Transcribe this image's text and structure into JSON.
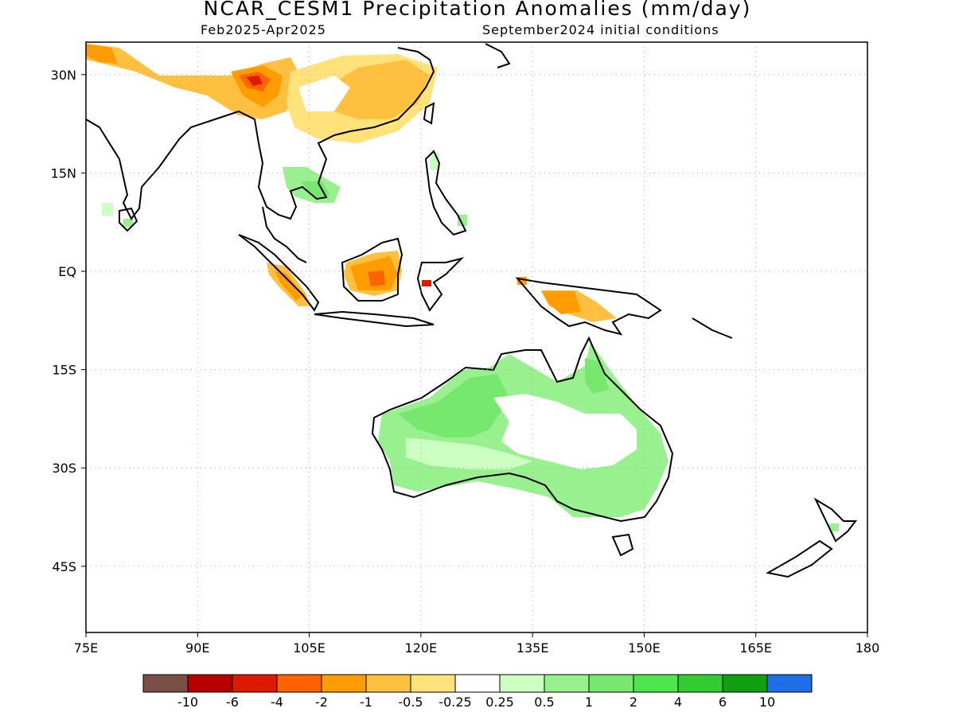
{
  "title": "NCAR_CESM1 Precipitation Anomalies (mm/day)",
  "valid_period": "Feb2025-Apr2025",
  "initial_conditions": "September2024 initial conditions",
  "lat_labels": [
    {
      "label": "30N",
      "lat": 30
    },
    {
      "label": "15N",
      "lat": 15
    },
    {
      "label": "EQ",
      "lat": 0
    },
    {
      "label": "15S",
      "lat": -15
    },
    {
      "label": "30S",
      "lat": -30
    },
    {
      "label": "45S",
      "lat": -45
    }
  ],
  "lon_labels": [
    {
      "label": "75E",
      "lon": 75
    },
    {
      "label": "90E",
      "lon": 90
    },
    {
      "label": "105E",
      "lon": 105
    },
    {
      "label": "120E",
      "lon": 120
    },
    {
      "label": "135E",
      "lon": 135
    },
    {
      "label": "150E",
      "lon": 150
    },
    {
      "label": "165E",
      "lon": 165
    },
    {
      "label": "180",
      "lon": 180
    }
  ],
  "colorbar": {
    "colors": [
      "#7a4f45",
      "#b80000",
      "#dd1a00",
      "#ff6200",
      "#ff9d00",
      "#ffc040",
      "#ffe27a",
      "#ffffff",
      "#ccffc2",
      "#99f08f",
      "#77e86e",
      "#4de64d",
      "#33cc33",
      "#119e11",
      "#1e6ee6"
    ],
    "labels": [
      "-10",
      "-6",
      "-4",
      "-2",
      "-1",
      "-0.5",
      "-0.25",
      "0.25",
      "0.5",
      "1",
      "2",
      "4",
      "6",
      "10"
    ]
  },
  "colors": {
    "wet_light": "#ccffc2",
    "wet_mid": "#99f08f",
    "wet_strong": "#77e86e",
    "dry_light": "#ffe27a",
    "dry_mid": "#ffc040",
    "dry_strong": "#ff9d00",
    "dry_core": "#ff6200",
    "dry_peak": "#dd1a00"
  }
}
